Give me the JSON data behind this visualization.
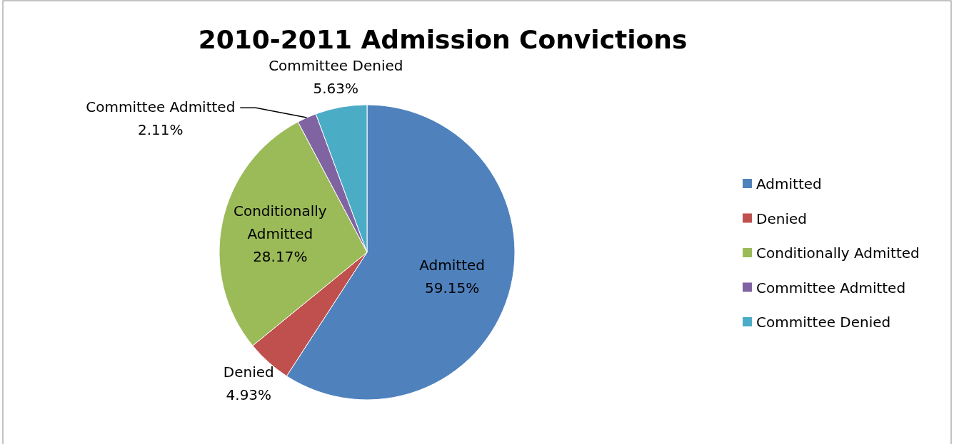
{
  "chart_data": {
    "type": "pie",
    "title": "2010-2011 Admission Convictions",
    "categories": [
      "Admitted",
      "Denied",
      "Conditionally Admitted",
      "Committee Admitted",
      "Committee Denied"
    ],
    "values": [
      59.15,
      4.93,
      28.17,
      2.11,
      5.63
    ],
    "value_labels": [
      "59.15%",
      "4.93%",
      "28.17%",
      "2.11%",
      "5.63%"
    ],
    "colors": [
      "#4f81bd",
      "#c0504d",
      "#9bbb59",
      "#8064a2",
      "#4bacc6"
    ],
    "legend": "right"
  }
}
